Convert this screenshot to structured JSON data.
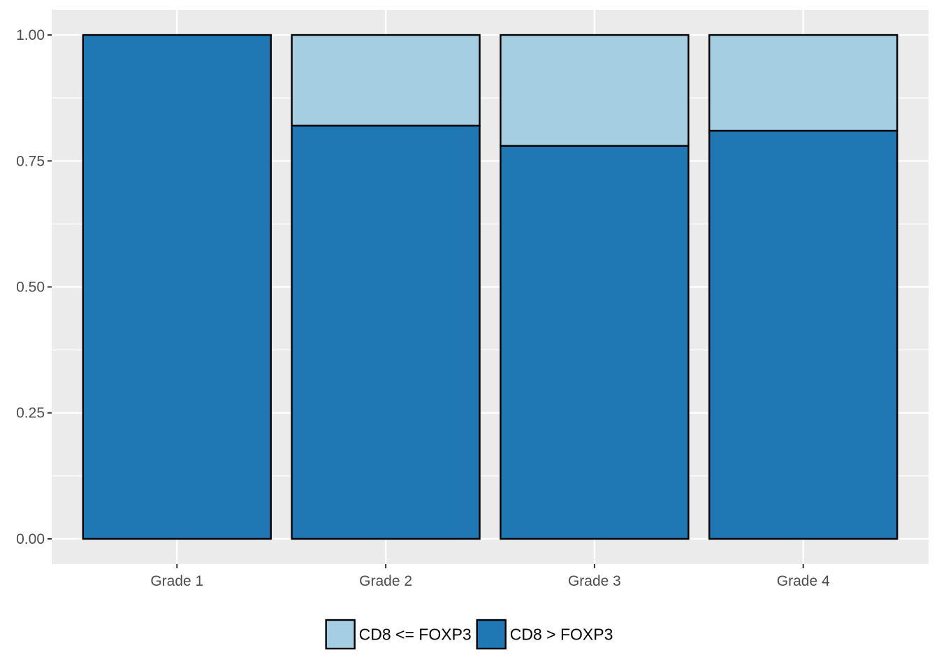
{
  "chart_data": {
    "type": "bar",
    "stacked": true,
    "title": "",
    "xlabel": "",
    "ylabel": "",
    "categories": [
      "Grade 1",
      "Grade 2",
      "Grade 3",
      "Grade 4"
    ],
    "series": [
      {
        "name": "CD8 <= FOXP3",
        "values": [
          0.0,
          0.18,
          0.22,
          0.19
        ],
        "color": "#a6cee3"
      },
      {
        "name": "CD8 > FOXP3",
        "values": [
          1.0,
          0.82,
          0.78,
          0.81
        ],
        "color": "#1f78b4"
      }
    ],
    "stack_order_bottom_to_top": [
      "CD8 > FOXP3",
      "CD8 <= FOXP3"
    ],
    "ylim": [
      -0.05,
      1.05
    ],
    "yticks": [
      0.0,
      0.25,
      0.5,
      0.75,
      1.0
    ],
    "ytick_labels": [
      "0.00",
      "0.25",
      "0.50",
      "0.75",
      "1.00"
    ],
    "grid": true,
    "panel_background": "#ebebeb",
    "grid_color": "#ffffff",
    "bar_outline_color": "#000000",
    "legend_position": "bottom"
  }
}
